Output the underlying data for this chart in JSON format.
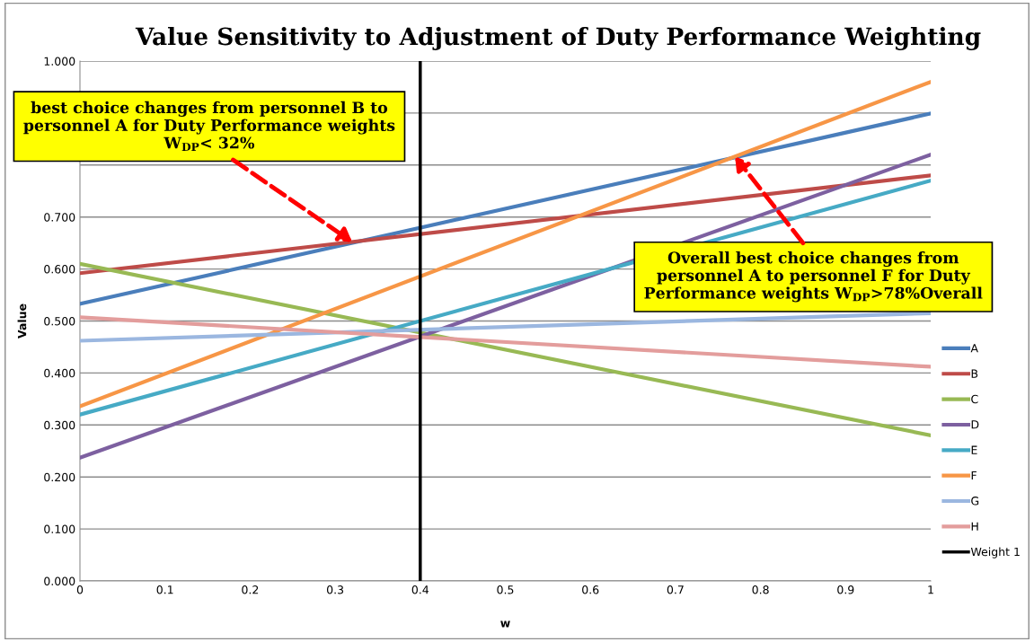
{
  "chart_data": {
    "type": "line",
    "title": "Value Sensitivity to Adjustment of Duty Performance Weighting",
    "xlabel": "w",
    "ylabel": "Value",
    "x": [
      0,
      1
    ],
    "series": [
      {
        "name": "A",
        "color": "#4a7ebb",
        "values": [
          0.533,
          0.899
        ]
      },
      {
        "name": "B",
        "color": "#be4b48",
        "values": [
          0.592,
          0.78
        ]
      },
      {
        "name": "C",
        "color": "#98b954",
        "values": [
          0.61,
          0.28
        ]
      },
      {
        "name": "D",
        "color": "#7d60a0",
        "values": [
          0.237,
          0.82
        ]
      },
      {
        "name": "E",
        "color": "#46aac5",
        "values": [
          0.32,
          0.77
        ]
      },
      {
        "name": "F",
        "color": "#f79646",
        "values": [
          0.336,
          0.96
        ]
      },
      {
        "name": "G",
        "color": "#9bb7e0",
        "values": [
          0.462,
          0.515
        ]
      },
      {
        "name": "H",
        "color": "#e39d9c",
        "values": [
          0.507,
          0.412
        ]
      },
      {
        "name": "Weight 1",
        "color": "#000000",
        "x": [
          0.4,
          0.4
        ],
        "values": [
          0,
          1
        ]
      }
    ],
    "xlim": [
      0,
      1
    ],
    "ylim": [
      0,
      1
    ],
    "xticks": [
      0,
      0.1,
      0.2,
      0.3,
      0.4,
      0.5,
      0.6,
      0.7,
      0.8,
      0.9,
      1
    ],
    "yticks": [
      {
        "value": 0,
        "label": "0.000"
      },
      {
        "value": 0.1,
        "label": "0.100"
      },
      {
        "value": 0.2,
        "label": "0.200"
      },
      {
        "value": 0.3,
        "label": "0.300"
      },
      {
        "value": 0.4,
        "label": "0.400"
      },
      {
        "value": 0.5,
        "label": "0.500"
      },
      {
        "value": 0.6,
        "label": "0.600"
      },
      {
        "value": 0.7,
        "label": "0.700"
      },
      {
        "value": 0.8,
        "label": null
      },
      {
        "value": 0.9,
        "label": null
      },
      {
        "value": 1,
        "label": "1.000"
      }
    ],
    "annotations": [
      {
        "text": "best choice changes from personnel B to\npersonnel A for Duty Performance weights\nW$_{DP}$< 32%",
        "x": 0.32,
        "y": 0.652
      },
      {
        "text": "Overall best choice changes from\npersonnel A to personnel F for Duty\nPerformance weights W$_{DP}$>78%Overall",
        "x": 0.77,
        "y": 0.816
      }
    ],
    "grid": "y",
    "legend": "right",
    "marker": "none",
    "line_style": "solid"
  }
}
